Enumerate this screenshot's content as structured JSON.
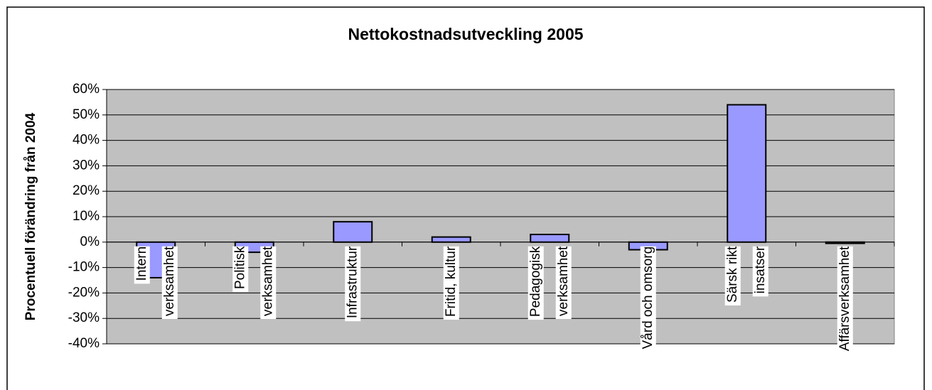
{
  "chart_data": {
    "type": "bar",
    "title": "Nettokostnadsutveckling 2005",
    "y_label": "Procentuell förändring från 2004",
    "categories": [
      [
        "Intern",
        "verksamhet"
      ],
      [
        "Politisk",
        "verksamhet"
      ],
      [
        "Infrastruktur"
      ],
      [
        "Fritid, kultur"
      ],
      [
        "Pedagogisk",
        "verksamhet"
      ],
      [
        "Vård och omsorg"
      ],
      [
        "Särsk rikt",
        "insatser"
      ],
      [
        "Affärsverksamhet"
      ]
    ],
    "values": [
      -14,
      -4,
      8,
      2,
      3,
      -3,
      54,
      -0.5
    ],
    "color": "#9999ff",
    "ylim": [
      -40,
      60
    ],
    "yticks": [
      {
        "value": -40,
        "label": "-40%"
      },
      {
        "value": -30,
        "label": "-30%"
      },
      {
        "value": -20,
        "label": "-20%"
      },
      {
        "value": -10,
        "label": "-10%"
      },
      {
        "value": 0,
        "label": "0%"
      },
      {
        "value": 10,
        "label": "10%"
      },
      {
        "value": 20,
        "label": "20%"
      },
      {
        "value": 30,
        "label": "30%"
      },
      {
        "value": 40,
        "label": "40%"
      },
      {
        "value": 50,
        "label": "50%"
      },
      {
        "value": 60,
        "label": "60%"
      }
    ],
    "grid": true
  }
}
